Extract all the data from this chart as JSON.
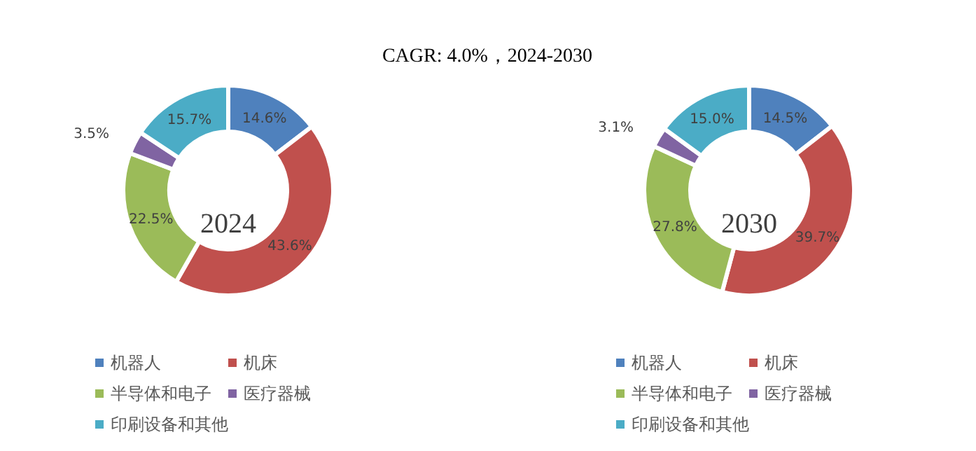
{
  "chart_data": [
    {
      "type": "donut",
      "title": "CAGR:   4.0%，2024-2030",
      "categories": [
        "机器人",
        "机床",
        "半导体和电子",
        "医疗器械",
        "印刷设备和其他"
      ],
      "values": [
        14.6,
        43.6,
        22.5,
        3.5,
        15.7
      ],
      "value_labels": [
        "14.6%",
        "43.6%",
        "22.5%",
        "3.5%",
        "15.7%"
      ],
      "colors": [
        "#4f81bd",
        "#c0504d",
        "#9bbb59",
        "#8064a2",
        "#4bacc6"
      ],
      "legend": "bottom",
      "annotations": [
        "2024"
      ]
    },
    {
      "type": "donut",
      "categories": [
        "机器人",
        "机床",
        "半导体和电子",
        "医疗器械",
        "印刷设备和其他"
      ],
      "values": [
        14.5,
        39.7,
        27.8,
        3.1,
        15.0
      ],
      "value_labels": [
        "14.5%",
        "39.7%",
        "27.8%",
        "3.1%",
        "15.0%"
      ],
      "colors": [
        "#4f81bd",
        "#c0504d",
        "#9bbb59",
        "#8064a2",
        "#4bacc6"
      ],
      "legend": "bottom",
      "annotations": [
        "2030"
      ]
    }
  ]
}
